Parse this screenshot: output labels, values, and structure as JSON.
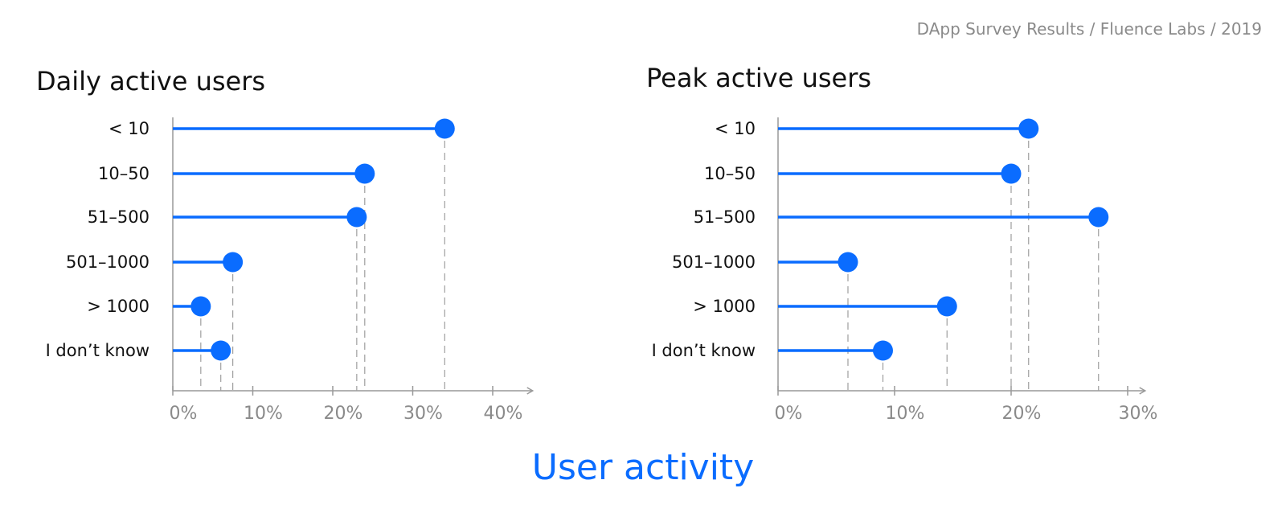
{
  "header": {
    "credit": "DApp Survey Results / Fluence Labs / 2019"
  },
  "footer": {
    "title": "User activity"
  },
  "colors": {
    "accent": "#0a6cff",
    "axis": "#999999",
    "guide": "#9e9e9e",
    "muted": "#8a8a8a"
  },
  "chart_data": [
    {
      "type": "lollipop",
      "title": "Daily active users",
      "categories": [
        "< 10",
        "10–50",
        "51–500",
        "501–1000",
        "> 1000",
        "I don’t know"
      ],
      "values": [
        34,
        24,
        23,
        7.5,
        3.5,
        6
      ],
      "x_ticks": [
        "0%",
        "10%",
        "20%",
        "30%",
        "40%"
      ],
      "xlim": [
        0,
        40
      ],
      "axis_max": 45,
      "unit": "%"
    },
    {
      "type": "lollipop",
      "title": "Peak active users",
      "categories": [
        "< 10",
        "10–50",
        "51–500",
        "501–1000",
        "> 1000",
        "I don’t know"
      ],
      "values": [
        21.5,
        20,
        27.5,
        6,
        14.5,
        9
      ],
      "x_ticks": [
        "0%",
        "10%",
        "20%",
        "30%"
      ],
      "xlim": [
        0,
        30
      ],
      "axis_max": 31.5,
      "unit": "%"
    }
  ]
}
